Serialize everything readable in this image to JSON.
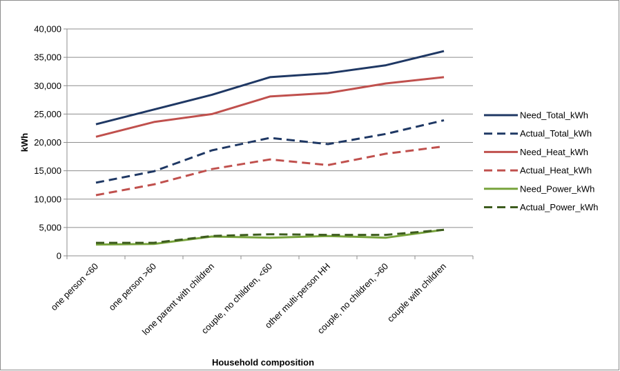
{
  "chart_data": {
    "type": "line",
    "xlabel": "Household composition",
    "ylabel": "kWh",
    "ylim": [
      0,
      40000
    ],
    "yticks": [
      0,
      5000,
      10000,
      15000,
      20000,
      25000,
      30000,
      35000,
      40000
    ],
    "ytick_labels": [
      "0",
      "5,000",
      "10,000",
      "15,000",
      "20,000",
      "25,000",
      "30,000",
      "35,000",
      "40,000"
    ],
    "grid": true,
    "legend_position": "right",
    "categories": [
      "one person <60",
      "one person >60",
      "lone parent with children",
      "couple, no children, <60",
      "other multi-person HH",
      "couple, no children, >60",
      "couple with children"
    ],
    "series": [
      {
        "name": "Need_Total_kWh",
        "color": "#1f3864",
        "dash": "solid",
        "values": [
          23200,
          25800,
          28400,
          31500,
          32200,
          33600,
          36100
        ]
      },
      {
        "name": "Actual_Total_kWh",
        "color": "#1f3864",
        "dash": "dashed",
        "values": [
          12900,
          14900,
          18600,
          20800,
          19700,
          21500,
          23900
        ]
      },
      {
        "name": "Need_Heat_kWh",
        "color": "#c0504d",
        "dash": "solid",
        "values": [
          21000,
          23600,
          25000,
          28100,
          28700,
          30400,
          31500
        ]
      },
      {
        "name": "Actual_Heat_kWh",
        "color": "#c0504d",
        "dash": "dashed",
        "values": [
          10700,
          12600,
          15300,
          17000,
          16000,
          18000,
          19300
        ]
      },
      {
        "name": "Need_Power_kWh",
        "color": "#77a33b",
        "dash": "solid",
        "values": [
          2000,
          2100,
          3400,
          3200,
          3500,
          3200,
          4600
        ]
      },
      {
        "name": "Actual_Power_kWh",
        "color": "#3d5c1e",
        "dash": "dashed",
        "values": [
          2300,
          2300,
          3500,
          3800,
          3700,
          3700,
          4600
        ]
      }
    ]
  }
}
